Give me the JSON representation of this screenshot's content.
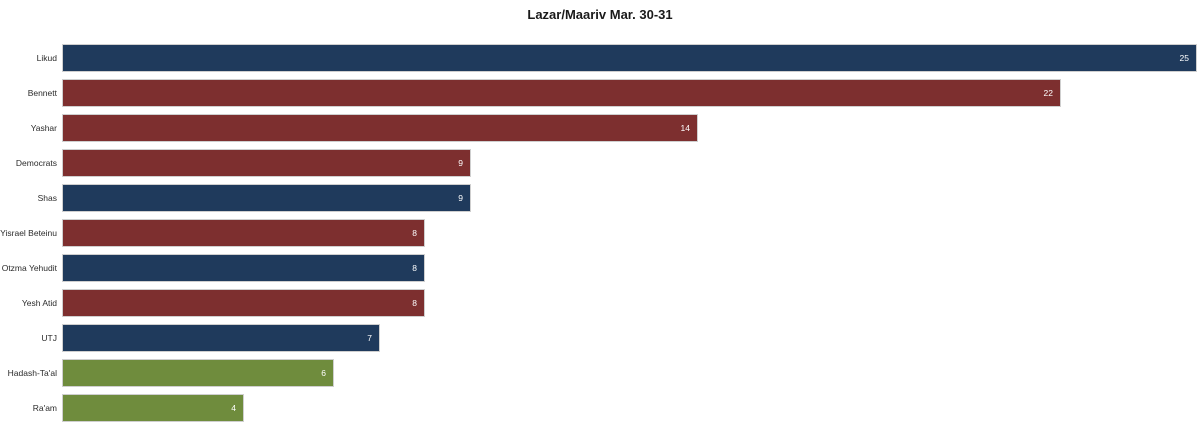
{
  "title": "Lazar/Maariv Mar. 30-31",
  "colors": {
    "navy": "#1f3a5c",
    "maroon": "#7d2f2f",
    "green": "#6f8c3d",
    "bar_border": "#cfcfcf",
    "value_text": "#ffffff",
    "label_text": "#2b2b2b",
    "background": "#ffffff"
  },
  "chart_data": {
    "type": "bar",
    "orientation": "horizontal",
    "title": "Lazar/Maariv Mar. 30-31",
    "categories": [
      "Likud",
      "Bennett",
      "Yashar",
      "Democrats",
      "Shas",
      "Yisrael Beteinu",
      "Otzma Yehudit",
      "Yesh Atid",
      "UTJ",
      "Hadash-Ta'al",
      "Ra'am"
    ],
    "values": [
      25,
      22,
      14,
      9,
      9,
      8,
      8,
      8,
      7,
      6,
      4
    ],
    "bar_colors": [
      "navy",
      "maroon",
      "maroon",
      "maroon",
      "navy",
      "maroon",
      "navy",
      "maroon",
      "navy",
      "green",
      "green"
    ],
    "xlim": [
      0,
      25
    ],
    "grid": false,
    "legend": false,
    "value_label_position": "inside-end",
    "xlabel": "",
    "ylabel": ""
  }
}
